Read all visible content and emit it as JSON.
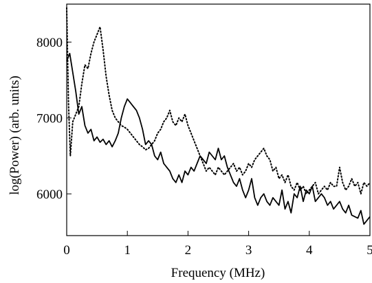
{
  "chart_data": {
    "type": "line",
    "title": "",
    "xlabel": "Frequency (MHz)",
    "ylabel": "log(Power)  (arb. units)",
    "xlim": [
      0,
      5
    ],
    "ylim": [
      5450,
      8500
    ],
    "grid": false,
    "legend": "none",
    "x_ticks": [
      0,
      1,
      2,
      3,
      4,
      5
    ],
    "x_tick_labels": [
      "0",
      "1",
      "2",
      "3",
      "4",
      "5"
    ],
    "y_ticks": [
      6000,
      7000,
      8000
    ],
    "y_tick_labels": [
      "6000",
      "7000",
      "8000"
    ],
    "series": [
      {
        "style": "solid",
        "color": "#000000",
        "x": [
          0.0,
          0.05,
          0.1,
          0.15,
          0.2,
          0.25,
          0.3,
          0.35,
          0.4,
          0.45,
          0.5,
          0.55,
          0.6,
          0.65,
          0.7,
          0.75,
          0.8,
          0.85,
          0.9,
          0.95,
          1.0,
          1.05,
          1.1,
          1.15,
          1.2,
          1.25,
          1.3,
          1.35,
          1.4,
          1.45,
          1.5,
          1.55,
          1.6,
          1.65,
          1.7,
          1.75,
          1.8,
          1.85,
          1.9,
          1.95,
          2.0,
          2.05,
          2.1,
          2.15,
          2.2,
          2.25,
          2.3,
          2.35,
          2.4,
          2.45,
          2.5,
          2.55,
          2.6,
          2.65,
          2.7,
          2.75,
          2.8,
          2.85,
          2.9,
          2.95,
          3.0,
          3.05,
          3.1,
          3.15,
          3.2,
          3.25,
          3.3,
          3.35,
          3.4,
          3.45,
          3.5,
          3.55,
          3.6,
          3.65,
          3.7,
          3.75,
          3.8,
          3.85,
          3.9,
          3.95,
          4.0,
          4.05,
          4.1,
          4.15,
          4.2,
          4.25,
          4.3,
          4.35,
          4.4,
          4.45,
          4.5,
          4.55,
          4.6,
          4.65,
          4.7,
          4.75,
          4.8,
          4.85,
          4.9,
          4.95,
          5.0
        ],
        "y": [
          7750,
          7850,
          7600,
          7350,
          7050,
          7150,
          6900,
          6800,
          6850,
          6700,
          6750,
          6680,
          6720,
          6650,
          6700,
          6620,
          6700,
          6800,
          7000,
          7150,
          7250,
          7200,
          7150,
          7100,
          7000,
          6850,
          6650,
          6700,
          6650,
          6500,
          6450,
          6550,
          6400,
          6350,
          6300,
          6200,
          6150,
          6250,
          6150,
          6300,
          6250,
          6350,
          6300,
          6400,
          6500,
          6450,
          6400,
          6550,
          6500,
          6450,
          6600,
          6450,
          6500,
          6350,
          6250,
          6150,
          6100,
          6200,
          6050,
          5950,
          6050,
          6200,
          5950,
          5850,
          5950,
          6000,
          5900,
          5850,
          5950,
          5900,
          5850,
          6050,
          5800,
          5900,
          5750,
          6000,
          5950,
          6100,
          5900,
          6050,
          6000,
          6100,
          5900,
          5950,
          6000,
          5950,
          5850,
          5900,
          5800,
          5850,
          5900,
          5800,
          5750,
          5850,
          5720,
          5700,
          5680,
          5780,
          5600,
          5650,
          5700
        ]
      },
      {
        "style": "dotted",
        "color": "#000000",
        "x": [
          0.0,
          0.03,
          0.06,
          0.1,
          0.15,
          0.2,
          0.25,
          0.3,
          0.35,
          0.4,
          0.45,
          0.5,
          0.55,
          0.6,
          0.65,
          0.7,
          0.75,
          0.8,
          0.85,
          0.9,
          0.95,
          1.0,
          1.05,
          1.1,
          1.15,
          1.2,
          1.25,
          1.3,
          1.35,
          1.4,
          1.45,
          1.5,
          1.55,
          1.6,
          1.65,
          1.7,
          1.75,
          1.8,
          1.85,
          1.9,
          1.95,
          2.0,
          2.05,
          2.1,
          2.15,
          2.2,
          2.25,
          2.3,
          2.35,
          2.4,
          2.45,
          2.5,
          2.55,
          2.6,
          2.65,
          2.7,
          2.75,
          2.8,
          2.85,
          2.9,
          2.95,
          3.0,
          3.05,
          3.1,
          3.15,
          3.2,
          3.25,
          3.3,
          3.35,
          3.4,
          3.45,
          3.5,
          3.55,
          3.6,
          3.65,
          3.7,
          3.75,
          3.8,
          3.85,
          3.9,
          3.95,
          4.0,
          4.05,
          4.1,
          4.15,
          4.2,
          4.25,
          4.3,
          4.35,
          4.4,
          4.45,
          4.5,
          4.55,
          4.6,
          4.65,
          4.7,
          4.75,
          4.8,
          4.85,
          4.9,
          4.95,
          5.0
        ],
        "y": [
          8450,
          7200,
          6500,
          6950,
          7050,
          7150,
          7450,
          7700,
          7650,
          7850,
          8000,
          8100,
          8200,
          7900,
          7550,
          7300,
          7100,
          7000,
          6950,
          6900,
          6880,
          6850,
          6800,
          6750,
          6700,
          6650,
          6620,
          6580,
          6600,
          6650,
          6700,
          6800,
          6850,
          6950,
          7000,
          7100,
          6950,
          6900,
          7000,
          6950,
          7050,
          6900,
          6800,
          6700,
          6600,
          6500,
          6400,
          6300,
          6350,
          6300,
          6250,
          6350,
          6300,
          6250,
          6300,
          6350,
          6400,
          6300,
          6350,
          6250,
          6300,
          6400,
          6350,
          6450,
          6500,
          6550,
          6600,
          6500,
          6450,
          6300,
          6350,
          6200,
          6250,
          6150,
          6250,
          6100,
          6050,
          6150,
          6050,
          6100,
          6000,
          6050,
          6100,
          6150,
          6000,
          6050,
          6100,
          6050,
          6150,
          6100,
          6100,
          6350,
          6150,
          6050,
          6100,
          6200,
          6100,
          6150,
          6000,
          6150,
          6100,
          6150
        ]
      }
    ]
  }
}
